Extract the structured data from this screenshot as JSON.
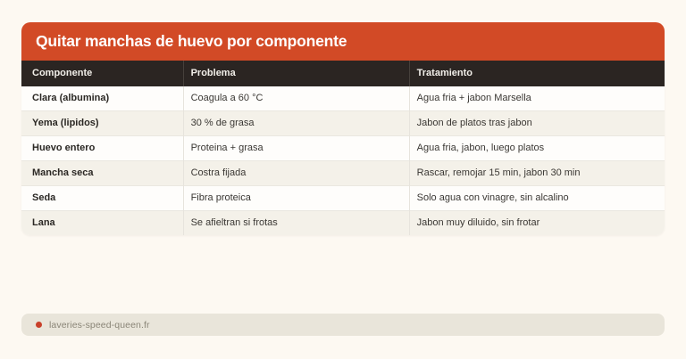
{
  "page": {
    "background_color": "#fdf9f2"
  },
  "card": {
    "title": "Quitar manchas de huevo por componente",
    "header_color": "#d24a26",
    "table_header_color": "#2b2522",
    "alt_row_color": "#f4f1e9"
  },
  "table": {
    "columns": [
      "Componente",
      "Problema",
      "Tratamiento"
    ],
    "rows": [
      {
        "componente": "Clara (albumina)",
        "problema": "Coagula a 60 °C",
        "tratamiento": "Agua fria + jabon Marsella"
      },
      {
        "componente": "Yema (lipidos)",
        "problema": "30 % de grasa",
        "tratamiento": "Jabon de platos tras jabon"
      },
      {
        "componente": "Huevo entero",
        "problema": "Proteina + grasa",
        "tratamiento": "Agua fria, jabon, luego platos"
      },
      {
        "componente": "Mancha seca",
        "problema": "Costra fijada",
        "tratamiento": "Rascar, remojar 15 min, jabon 30 min"
      },
      {
        "componente": "Seda",
        "problema": "Fibra proteica",
        "tratamiento": "Solo agua con vinagre, sin alcalino"
      },
      {
        "componente": "Lana",
        "problema": "Se afieltran si frotas",
        "tratamiento": "Jabon muy diluido, sin frotar"
      }
    ]
  },
  "footer": {
    "source": "laveries-speed-queen.fr",
    "dot_color": "#c9402a"
  }
}
